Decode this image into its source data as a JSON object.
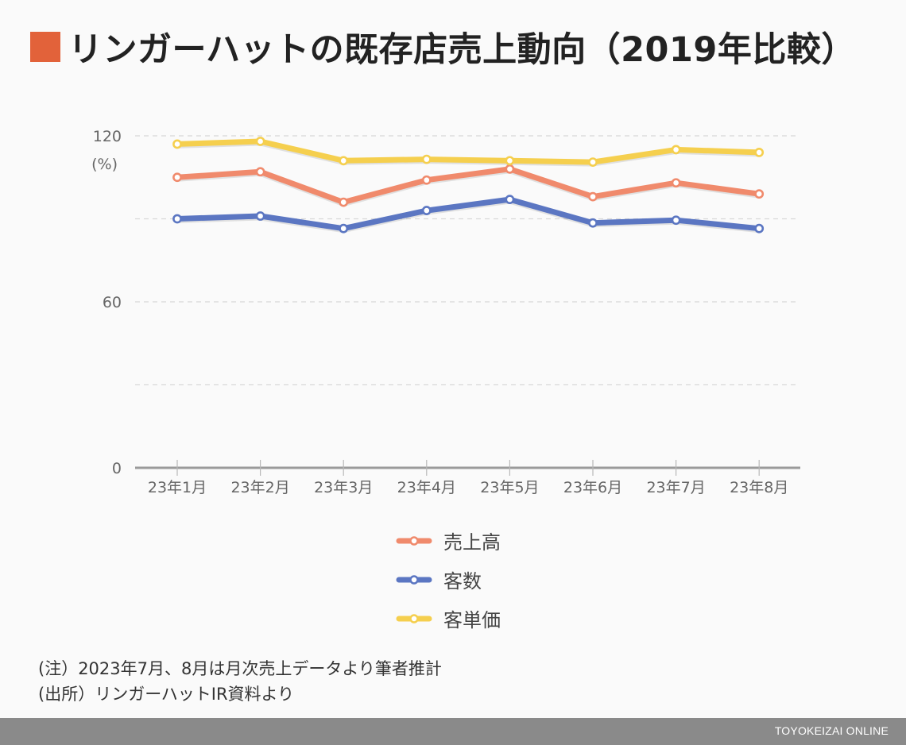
{
  "title": "リンガーハットの既存店売上動向（2019年比較）",
  "chart_data": {
    "type": "line",
    "categories": [
      "23年1月",
      "23年2月",
      "23年3月",
      "23年4月",
      "23年5月",
      "23年6月",
      "23年7月",
      "23年8月"
    ],
    "series": [
      {
        "name": "売上高",
        "color": "#f08a6c",
        "values": [
          105,
          107,
          96,
          104,
          108,
          98,
          103,
          99
        ]
      },
      {
        "name": "客数",
        "color": "#5b76c2",
        "values": [
          90,
          91,
          86.5,
          93,
          97,
          88.5,
          89.5,
          86.5
        ]
      },
      {
        "name": "客単価",
        "color": "#f5cf4e",
        "values": [
          117,
          118,
          111,
          111.5,
          111,
          110.5,
          115,
          114
        ]
      }
    ],
    "y_ticks": [
      "0",
      "60",
      "120"
    ],
    "y_unit": "(%)",
    "ylim": [
      0,
      120
    ],
    "grid": true,
    "legend": "bottom-center"
  },
  "notes": [
    "(注）2023年7月、8月は月次売上データより筆者推計",
    "(出所）リンガーハットIR資料より"
  ],
  "brand": "TOYOKEIZAI ONLINE"
}
